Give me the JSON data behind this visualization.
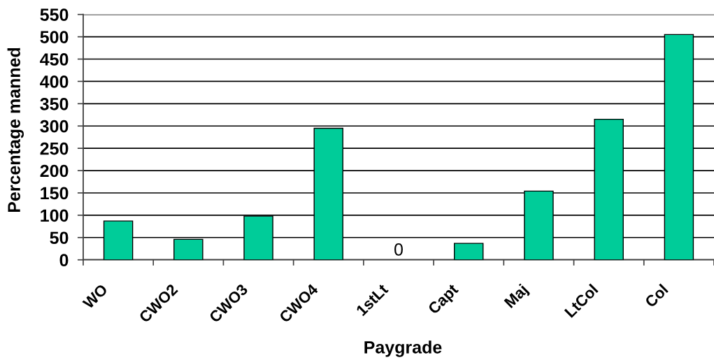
{
  "chart_data": {
    "type": "bar",
    "xlabel": "Paygrade",
    "ylabel": "Percentage manned",
    "categories": [
      "WO",
      "CWO2",
      "CWO3",
      "CWO4",
      "1stLt",
      "Capt",
      "Maj",
      "LtCol",
      "Col"
    ],
    "values": [
      87,
      46,
      98,
      295,
      0,
      37,
      154,
      315,
      505
    ],
    "value_labels": [
      null,
      null,
      null,
      null,
      "0",
      null,
      null,
      null,
      null
    ],
    "color": "#00cc99",
    "ylim": [
      0,
      550
    ],
    "yticks": [
      0,
      50,
      100,
      150,
      200,
      250,
      300,
      350,
      400,
      450,
      500,
      550
    ],
    "grid": "y"
  }
}
